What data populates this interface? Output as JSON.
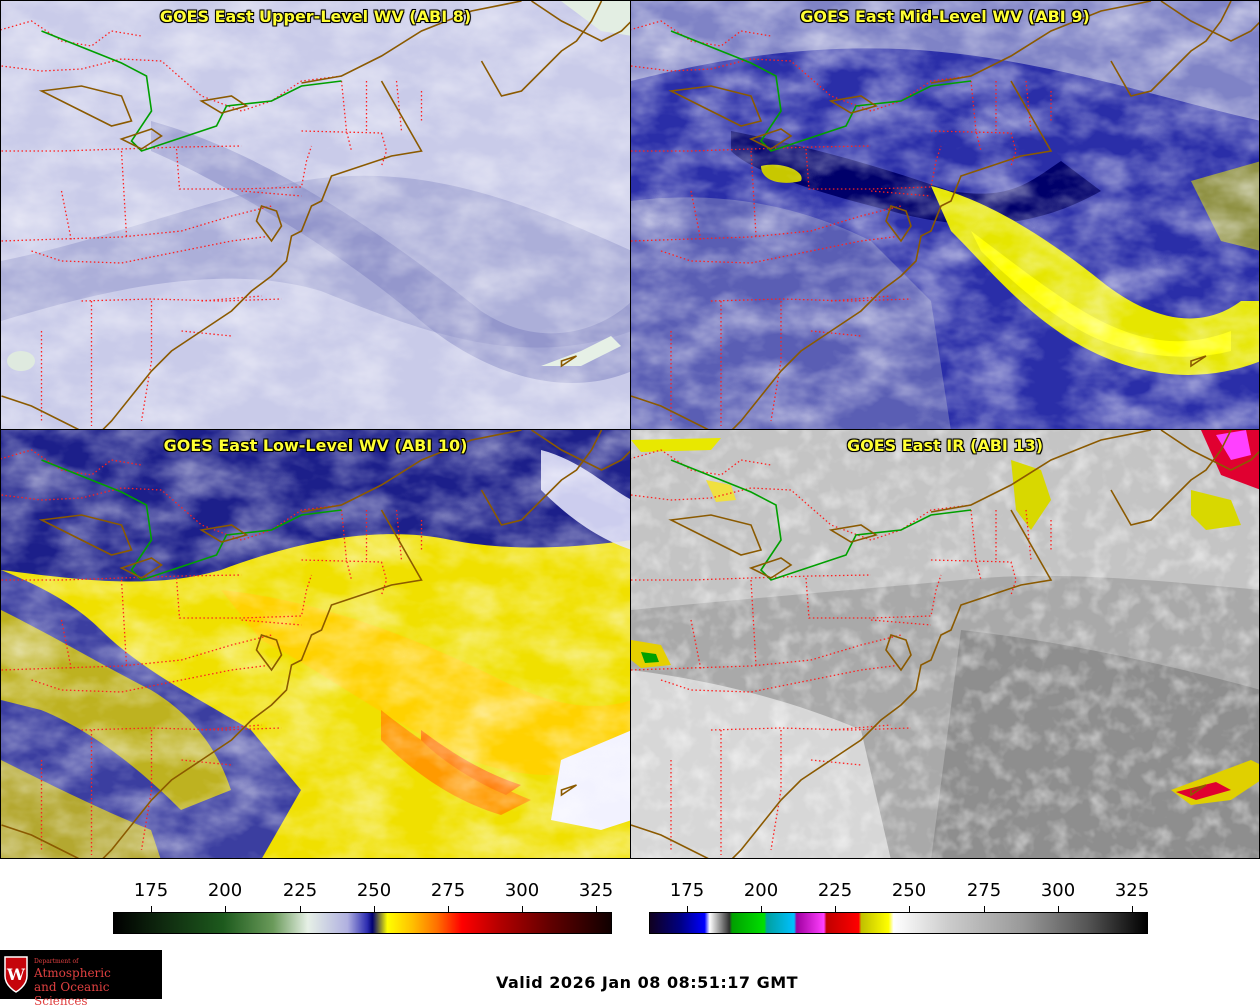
{
  "panels": [
    {
      "id": "p1",
      "title": "GOES East Upper-Level WV (ABI 8)",
      "product": "upper-level-wv"
    },
    {
      "id": "p2",
      "title": "GOES East Mid-Level WV (ABI 9)",
      "product": "mid-level-wv"
    },
    {
      "id": "p3",
      "title": "GOES East Low-Level WV (ABI 10)",
      "product": "low-level-wv"
    },
    {
      "id": "p4",
      "title": "GOES East IR (ABI 13)",
      "product": "ir"
    }
  ],
  "colorbars": {
    "wv": {
      "ticks": [
        "175",
        "200",
        "225",
        "250",
        "275",
        "300",
        "325"
      ]
    },
    "ir": {
      "ticks": [
        "175",
        "200",
        "225",
        "250",
        "275",
        "300",
        "325"
      ]
    }
  },
  "logo": {
    "dept": "Department of",
    "line1": "Atmospheric",
    "line2": "and Oceanic Sciences",
    "letter": "W"
  },
  "valid_time": "Valid 2026 Jan 08 08:51:17 GMT",
  "colors": {
    "title_text": "#ffff33",
    "state_borders": "#ff2020",
    "coastline": "#8b5a00",
    "canada_us_border": "#00a000"
  }
}
